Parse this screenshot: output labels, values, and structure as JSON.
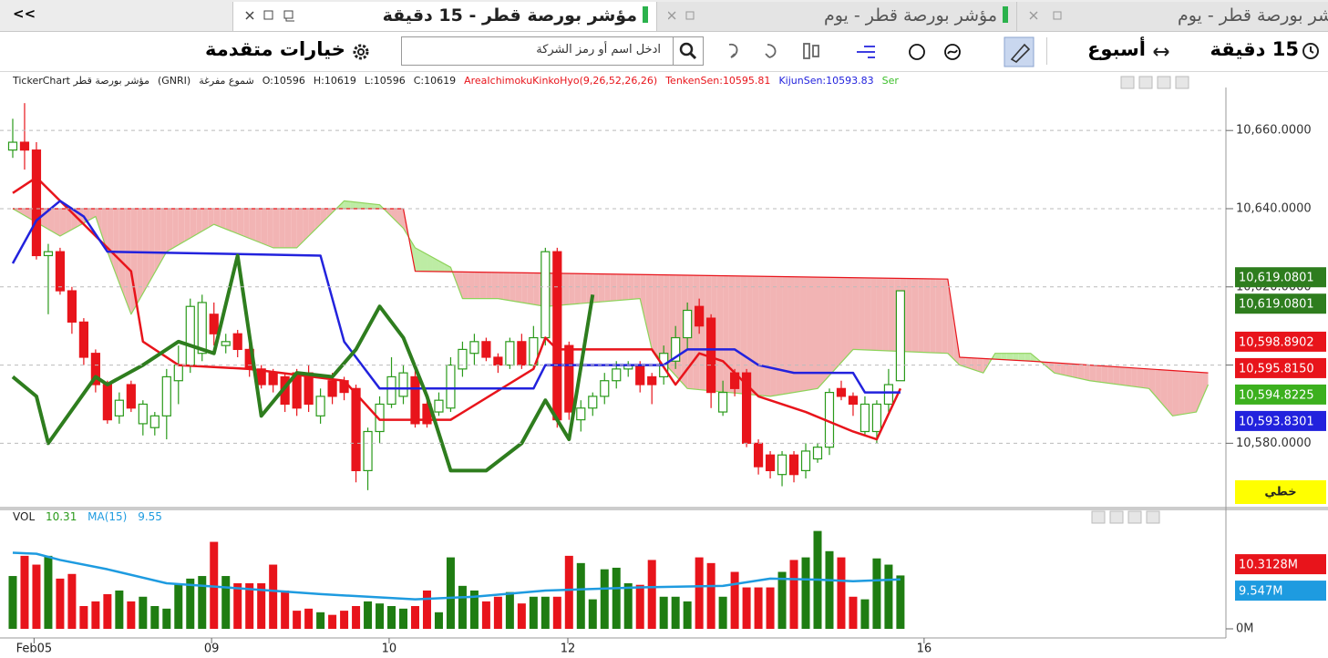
{
  "tabs": {
    "collapse": "<<",
    "items": [
      "مؤشر بورصة قطر - 15 دقيقة",
      "مؤشر بورصة قطر - يوم",
      "شر بورصة قطر - يوم"
    ]
  },
  "toolbar": {
    "interval": "15 دقيقة",
    "period": "أسبوع",
    "search_placeholder": "ادخل اسم أو رمز الشركة",
    "advanced": "خيارات متقدمة"
  },
  "chart_data": [
    {
      "type": "candlestick",
      "legend": [
        {
          "text": "TickerChart مؤشر بورصة قطر",
          "color": "#222222"
        },
        {
          "text": "(GNRI)",
          "color": "#222222"
        },
        {
          "text": "شموع مفرغة",
          "color": "#222222"
        },
        {
          "text": "O:10596",
          "color": "#222222"
        },
        {
          "text": "H:10619",
          "color": "#222222"
        },
        {
          "text": "L:10596",
          "color": "#222222"
        },
        {
          "text": "C:10619",
          "color": "#222222"
        },
        {
          "text": "AreaIchimokuKinkoHyo(9,26,52,26,26)",
          "color": "#e8141b"
        },
        {
          "text": "TenkenSen:10595.81",
          "color": "#e8141b"
        },
        {
          "text": "KijunSen:10593.83",
          "color": "#2222dd"
        },
        {
          "text": "Ser",
          "color": "#3cbf2a"
        }
      ],
      "xlim": [
        -1,
        102.5
      ],
      "ylim": [
        10564,
        10671
      ],
      "yticks": [
        {
          "value": 10660,
          "label": "10,660.0000"
        },
        {
          "value": 10640,
          "label": "10,640.0000"
        },
        {
          "value": 10620,
          "label": "10,620.0000"
        },
        {
          "value": 10600,
          "label": "10,600.0000"
        },
        {
          "value": 10580,
          "label": "10,580.0000"
        }
      ],
      "grid": true,
      "up_color": "#2a9a1a",
      "down_color": "#e8141b",
      "x": [
        0,
        1,
        2,
        3,
        4,
        5,
        6,
        7,
        8,
        9,
        10,
        11,
        12,
        13,
        14,
        15,
        16,
        17,
        18,
        19,
        20,
        21,
        22,
        23,
        24,
        25,
        26,
        27,
        28,
        29,
        30,
        31,
        32,
        33,
        34,
        35,
        36,
        37,
        38,
        39,
        40,
        41,
        42,
        43,
        44,
        45,
        46,
        47,
        48,
        49,
        50,
        51,
        52,
        53,
        54,
        55,
        56,
        57,
        58,
        59,
        60,
        61,
        62,
        63,
        64,
        65,
        66,
        67,
        68,
        69,
        70,
        71,
        72,
        73,
        74,
        75
      ],
      "open": [
        10655,
        10657,
        10655,
        10628,
        10629,
        10619,
        10611,
        10603,
        10595,
        10587,
        10595,
        10585,
        10584,
        10587,
        10596,
        10600,
        10603,
        10613,
        10605,
        10608,
        10604,
        10599,
        10598,
        10597,
        10598,
        10598,
        10587,
        10596,
        10596,
        10594,
        10573,
        10583,
        10590,
        10592,
        10597,
        10590,
        10588,
        10589,
        10599,
        10603,
        10606,
        10602,
        10600,
        10606,
        10600,
        10607,
        10629,
        10605,
        10586,
        10589,
        10592,
        10596,
        10599,
        10600,
        10597,
        10597,
        10601,
        10607,
        10615,
        10612,
        10588,
        10598,
        10598,
        10580,
        10577,
        10572,
        10577,
        10573,
        10576,
        10579,
        10594,
        10592,
        10583,
        10583,
        10590,
        10596
      ],
      "high": [
        10663,
        10667,
        10657,
        10631,
        10630,
        10620,
        10612,
        10604,
        10596,
        10593,
        10596,
        10591,
        10588,
        10599,
        10605,
        10617,
        10618,
        10616,
        10608,
        10609,
        10606,
        10600,
        10599,
        10598,
        10599,
        10600,
        10594,
        10598,
        10597,
        10595,
        10584,
        10592,
        10602,
        10600,
        10599,
        10592,
        10593,
        10602,
        10606,
        10608,
        10607,
        10603,
        10607,
        10608,
        10610,
        10630,
        10630,
        10606,
        10591,
        10593,
        10598,
        10601,
        10601,
        10601,
        10598,
        10605,
        10610,
        10616,
        10617,
        10613,
        10596,
        10599,
        10599,
        10581,
        10578,
        10578,
        10578,
        10580,
        10580,
        10594,
        10596,
        10593,
        10592,
        10591,
        10599,
        10619
      ],
      "low": [
        10653,
        10650,
        10627,
        10613,
        10618,
        10608,
        10600,
        10593,
        10585,
        10585,
        10588,
        10582,
        10582,
        10581,
        10590,
        10598,
        10601,
        10605,
        10603,
        10602,
        10597,
        10594,
        10593,
        10588,
        10587,
        10588,
        10585,
        10590,
        10591,
        10570,
        10568,
        10580,
        10589,
        10590,
        10584,
        10584,
        10587,
        10588,
        10597,
        10600,
        10601,
        10598,
        10599,
        10599,
        10599,
        10605,
        10584,
        10586,
        10583,
        10587,
        10590,
        10594,
        10597,
        10593,
        10590,
        10595,
        10599,
        10604,
        10608,
        10589,
        10587,
        10592,
        10579,
        10572,
        10571,
        10569,
        10570,
        10571,
        10575,
        10577,
        10591,
        10587,
        10582,
        10580,
        10588,
        10596
      ],
      "close": [
        10657,
        10655,
        10628,
        10629,
        10619,
        10611,
        10602,
        10595,
        10586,
        10591,
        10589,
        10590,
        10587,
        10597,
        10600,
        10615,
        10616,
        10608,
        10606,
        10604,
        10599,
        10595,
        10595,
        10590,
        10589,
        10590,
        10592,
        10592,
        10593,
        10573,
        10583,
        10590,
        10597,
        10598,
        10585,
        10585,
        10591,
        10600,
        10604,
        10606,
        10602,
        10600,
        10606,
        10600,
        10607,
        10629,
        10586,
        10588,
        10589,
        10592,
        10596,
        10599,
        10600,
        10595,
        10595,
        10603,
        10607,
        10614,
        10610,
        10593,
        10593,
        10594,
        10580,
        10574,
        10573,
        10577,
        10572,
        10578,
        10579,
        10593,
        10592,
        10590,
        10590,
        10590,
        10595,
        10619
      ],
      "lines": [
        {
          "color": "#e8141b",
          "width": 2.5,
          "x": [
            0,
            2,
            4,
            10,
            11,
            14,
            20,
            28,
            31,
            37,
            44,
            45,
            46,
            54,
            56,
            58,
            60,
            63,
            67,
            71,
            73,
            75
          ],
          "values": [
            10644,
            10648,
            10642,
            10624,
            10606,
            10600,
            10599,
            10596,
            10586,
            10586,
            10599,
            10607,
            10604,
            10604,
            10595,
            10603,
            10601,
            10592,
            10588,
            10583,
            10581,
            10594
          ]
        },
        {
          "color": "#2222dd",
          "width": 2.5,
          "x": [
            0,
            2,
            4,
            6,
            8,
            26,
            28,
            31,
            44,
            45,
            55,
            57,
            61,
            63,
            66,
            71,
            72,
            75
          ],
          "values": [
            10626,
            10637,
            10642,
            10638,
            10629,
            10628,
            10606,
            10594,
            10594,
            10600,
            10600,
            10604,
            10604,
            10600,
            10598,
            10598,
            10593,
            10593
          ]
        },
        {
          "color": "#2e7d1e",
          "width": 4,
          "x": [
            0,
            2,
            3,
            7,
            8,
            11,
            14,
            17,
            19,
            21,
            24,
            27,
            29,
            31,
            33,
            35,
            37,
            40,
            43,
            45,
            47,
            49
          ],
          "values": [
            10597,
            10592,
            10580,
            10597,
            10595,
            10600,
            10606,
            10603,
            10628,
            10587,
            10598,
            10597,
            10604,
            10615,
            10607,
            10592,
            10573,
            10573,
            10580,
            10591,
            10581,
            10618
          ]
        },
        {
          "color": "#8ed35a",
          "width": 1.2,
          "x": [
            0,
            4,
            7,
            8,
            10,
            13,
            17,
            22,
            24,
            27,
            28,
            31,
            33,
            34,
            37,
            38,
            41,
            45,
            53,
            54,
            57,
            64,
            68,
            71,
            79,
            80,
            82,
            83,
            86,
            88,
            91,
            96,
            98,
            100,
            101
          ],
          "values": [
            10640,
            10633,
            10638,
            10629,
            10613,
            10629,
            10636,
            10630,
            10630,
            10639,
            10642,
            10641,
            10635,
            10630,
            10625,
            10617,
            10617,
            10615,
            10617,
            10604,
            10594,
            10592,
            10594,
            10604,
            10603,
            10600,
            10598,
            10603,
            10603,
            10598,
            10596,
            10594,
            10587,
            10588,
            10595
          ]
        },
        {
          "color": "#e8141b",
          "width": 1.2,
          "x": [
            0,
            33,
            34,
            79,
            80,
            86,
            101
          ],
          "values": [
            10640,
            10640,
            10624,
            10622,
            10602,
            10601,
            10598
          ]
        }
      ],
      "cloud": {
        "up_color": "#bdecA4",
        "down_color": "#f2b4b4"
      },
      "badges": [
        {
          "value": 10619.0801,
          "label": "10,619.0801",
          "color": "#2e7d1e"
        },
        {
          "value": 10619.0801,
          "label": "10,619.0801",
          "color": "#2e7d1e"
        },
        {
          "value": 10598.8902,
          "label": "10,598.8902",
          "color": "#e8141b"
        },
        {
          "value": 10595.815,
          "label": "10,595.8150",
          "color": "#e8141b"
        },
        {
          "value": 10594.8225,
          "label": "10,594.8225",
          "color": "#3cb01e"
        },
        {
          "value": 10593.8301,
          "label": "10,593.8301",
          "color": "#2222dd"
        }
      ],
      "mode_label": "خطي"
    },
    {
      "type": "bar",
      "legend": [
        "VOL",
        "MA(15)"
      ],
      "xlim": [
        -1,
        102.5
      ],
      "ylim": [
        0,
        22
      ],
      "yticks": [
        {
          "value": 0,
          "label": "0M"
        }
      ],
      "xticks": [
        {
          "value": 1.8,
          "label": "Feb05"
        },
        {
          "value": 16.8,
          "label": "09"
        },
        {
          "value": 31.8,
          "label": "10"
        },
        {
          "value": 46.9,
          "label": "12"
        },
        {
          "value": 77,
          "label": "16"
        }
      ],
      "x": [
        0,
        1,
        2,
        3,
        4,
        5,
        6,
        7,
        8,
        9,
        10,
        11,
        12,
        13,
        14,
        15,
        16,
        17,
        18,
        19,
        20,
        21,
        22,
        23,
        24,
        25,
        26,
        27,
        28,
        29,
        30,
        31,
        32,
        33,
        34,
        35,
        36,
        37,
        38,
        39,
        40,
        41,
        42,
        43,
        44,
        45,
        46,
        47,
        48,
        49,
        50,
        51,
        52,
        53,
        54,
        55,
        56,
        57,
        58,
        59,
        60,
        61,
        62,
        63,
        64,
        65,
        66,
        67,
        68,
        69,
        70,
        71,
        72,
        73,
        74,
        75
      ],
      "values": [
        10.2,
        14.1,
        12.4,
        14.1,
        9.7,
        10.6,
        4.4,
        5.3,
        6.7,
        7.4,
        5.3,
        6.2,
        4.4,
        3.9,
        8.8,
        9.7,
        10.2,
        16.8,
        10.2,
        8.8,
        8.8,
        8.8,
        12.4,
        7.4,
        3.5,
        3.9,
        3.2,
        2.7,
        3.5,
        4.4,
        5.3,
        4.9,
        4.4,
        3.9,
        4.4,
        7.4,
        3.2,
        13.8,
        8.3,
        7.4,
        5.3,
        6.2,
        7.1,
        4.9,
        6.2,
        6.2,
        6.2,
        14.1,
        12.7,
        5.7,
        11.5,
        11.8,
        8.8,
        8.5,
        13.3,
        6.2,
        6.2,
        5.3,
        13.8,
        12.7,
        6.2,
        11.0,
        8.0,
        8.0,
        8.0,
        11.0,
        13.3,
        13.8,
        18.9,
        15.0,
        13.8,
        6.2,
        5.7,
        13.6,
        12.4,
        10.31
      ],
      "ma": {
        "color": "#1e9be0",
        "x": [
          0,
          2,
          4,
          8,
          13,
          18,
          26,
          34,
          39,
          45,
          53,
          60,
          64,
          68,
          71,
          75
        ],
        "values": [
          14.7,
          14.5,
          13.3,
          11.5,
          8.8,
          8.0,
          6.7,
          5.7,
          6.2,
          7.4,
          8.0,
          8.3,
          9.7,
          9.5,
          9.2,
          9.55
        ]
      },
      "badges": [
        {
          "value": 10.3128,
          "label": "10.3128M",
          "color": "#e8141b"
        },
        {
          "value": 9.547,
          "label": "9.547M",
          "color": "#1e9be0"
        }
      ]
    }
  ]
}
